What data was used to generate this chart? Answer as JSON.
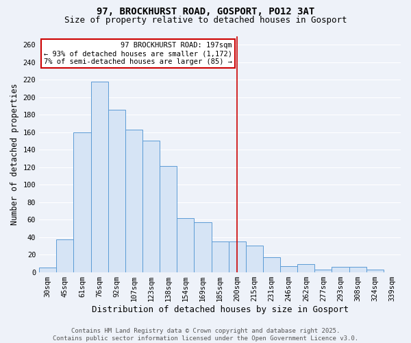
{
  "title": "97, BROCKHURST ROAD, GOSPORT, PO12 3AT",
  "subtitle": "Size of property relative to detached houses in Gosport",
  "xlabel": "Distribution of detached houses by size in Gosport",
  "ylabel": "Number of detached properties",
  "categories": [
    "30sqm",
    "45sqm",
    "61sqm",
    "76sqm",
    "92sqm",
    "107sqm",
    "123sqm",
    "138sqm",
    "154sqm",
    "169sqm",
    "185sqm",
    "200sqm",
    "215sqm",
    "231sqm",
    "246sqm",
    "262sqm",
    "277sqm",
    "293sqm",
    "308sqm",
    "324sqm",
    "339sqm"
  ],
  "values": [
    5,
    37,
    160,
    218,
    186,
    163,
    150,
    121,
    62,
    57,
    35,
    35,
    30,
    17,
    7,
    9,
    3,
    6,
    6,
    3,
    0
  ],
  "vline_index": 11,
  "annotation_text": "97 BROCKHURST ROAD: 197sqm\n← 93% of detached houses are smaller (1,172)\n7% of semi-detached houses are larger (85) →",
  "bar_fill_color": "#d6e4f5",
  "bar_edge_color": "#5b9bd5",
  "vline_color": "#cc0000",
  "annotation_box_edge_color": "#cc0000",
  "background_color": "#eef2f9",
  "grid_color": "#ffffff",
  "footer_text": "Contains HM Land Registry data © Crown copyright and database right 2025.\nContains public sector information licensed under the Open Government Licence v3.0.",
  "ylim": [
    0,
    270
  ],
  "yticks": [
    0,
    20,
    40,
    60,
    80,
    100,
    120,
    140,
    160,
    180,
    200,
    220,
    240,
    260
  ],
  "title_fontsize": 10,
  "subtitle_fontsize": 9,
  "xlabel_fontsize": 9,
  "ylabel_fontsize": 8.5,
  "tick_fontsize": 7.5,
  "annotation_fontsize": 7.5,
  "footer_fontsize": 6.5
}
